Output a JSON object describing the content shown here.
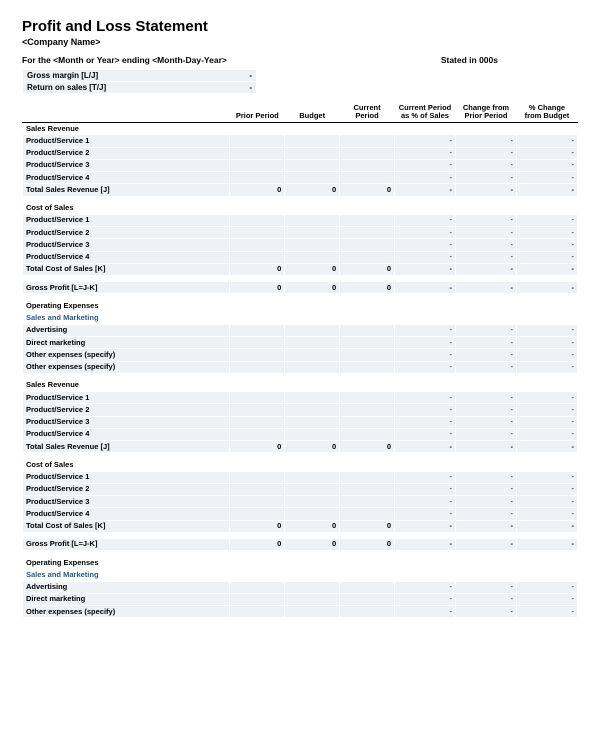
{
  "header": {
    "title": "Profit and Loss Statement",
    "company": "<Company Name>",
    "period_line_prefix": "For the ",
    "period_line_month": "<Month or Year>",
    "period_line_mid": " ending ",
    "period_line_date": "<Month-Day-Year>",
    "stated": "Stated in 000s"
  },
  "metrics": {
    "gross_margin_label": "Gross margin  [L/J]",
    "gross_margin_val": "-",
    "return_on_sales_label": "Return on sales  [T/J]",
    "return_on_sales_val": "-"
  },
  "columns": {
    "c0": "",
    "c1": "Prior Period",
    "c2": "Budget",
    "c3": "Current Period",
    "c4": "Current Period as % of Sales",
    "c5": "Change from Prior Period",
    "c6": "% Change from Budget"
  },
  "sections": [
    {
      "type": "section",
      "label": "Sales Revenue"
    },
    {
      "type": "data",
      "label": "Product/Service 1",
      "indent": true,
      "cells": [
        "",
        "",
        "",
        "-",
        "-",
        "-"
      ]
    },
    {
      "type": "data",
      "label": "Product/Service 2",
      "indent": true,
      "cells": [
        "",
        "",
        "",
        "-",
        "-",
        "-"
      ]
    },
    {
      "type": "data",
      "label": "Product/Service 3",
      "indent": true,
      "cells": [
        "",
        "",
        "",
        "-",
        "-",
        "-"
      ]
    },
    {
      "type": "data",
      "label": "Product/Service 4",
      "indent": true,
      "cells": [
        "",
        "",
        "",
        "-",
        "-",
        "-"
      ]
    },
    {
      "type": "total",
      "label": "Total Sales Revenue  [J]",
      "cells": [
        "0",
        "0",
        "0",
        "-",
        "-",
        "-"
      ]
    },
    {
      "type": "spacer"
    },
    {
      "type": "section",
      "label": "Cost of Sales"
    },
    {
      "type": "data",
      "label": "Product/Service 1",
      "indent": true,
      "cells": [
        "",
        "",
        "",
        "-",
        "-",
        "-"
      ]
    },
    {
      "type": "data",
      "label": "Product/Service 2",
      "indent": true,
      "cells": [
        "",
        "",
        "",
        "-",
        "-",
        "-"
      ]
    },
    {
      "type": "data",
      "label": "Product/Service 3",
      "indent": true,
      "cells": [
        "",
        "",
        "",
        "-",
        "-",
        "-"
      ]
    },
    {
      "type": "data",
      "label": "Product/Service 4",
      "indent": true,
      "cells": [
        "",
        "",
        "",
        "-",
        "-",
        "-"
      ]
    },
    {
      "type": "total",
      "label": "Total Cost of Sales  [K]",
      "cells": [
        "0",
        "0",
        "0",
        "-",
        "-",
        "-"
      ]
    },
    {
      "type": "spacer"
    },
    {
      "type": "total",
      "label": "Gross Profit  [L=J-K]",
      "cells": [
        "0",
        "0",
        "0",
        "-",
        "-",
        "-"
      ]
    },
    {
      "type": "spacer"
    },
    {
      "type": "section",
      "label": "Operating Expenses"
    },
    {
      "type": "subh",
      "label": "Sales and Marketing"
    },
    {
      "type": "data",
      "label": "Advertising",
      "indent": true,
      "cells": [
        "",
        "",
        "",
        "-",
        "-",
        "-"
      ]
    },
    {
      "type": "data",
      "label": "Direct marketing",
      "indent": true,
      "cells": [
        "",
        "",
        "",
        "-",
        "-",
        "-"
      ]
    },
    {
      "type": "data",
      "label": "Other expenses (specify)",
      "indent": true,
      "cells": [
        "",
        "",
        "",
        "-",
        "-",
        "-"
      ]
    },
    {
      "type": "data",
      "label": "Other expenses (specify)",
      "indent": true,
      "cells": [
        "",
        "",
        "",
        "-",
        "-",
        "-"
      ]
    },
    {
      "type": "spacer"
    },
    {
      "type": "section",
      "label": "Sales Revenue"
    },
    {
      "type": "data",
      "label": "Product/Service 1",
      "indent": true,
      "cells": [
        "",
        "",
        "",
        "-",
        "-",
        "-"
      ]
    },
    {
      "type": "data",
      "label": "Product/Service 2",
      "indent": true,
      "cells": [
        "",
        "",
        "",
        "-",
        "-",
        "-"
      ]
    },
    {
      "type": "data",
      "label": "Product/Service 3",
      "indent": true,
      "cells": [
        "",
        "",
        "",
        "-",
        "-",
        "-"
      ]
    },
    {
      "type": "data",
      "label": "Product/Service 4",
      "indent": true,
      "cells": [
        "",
        "",
        "",
        "-",
        "-",
        "-"
      ]
    },
    {
      "type": "total",
      "label": "Total Sales Revenue  [J]",
      "cells": [
        "0",
        "0",
        "0",
        "-",
        "-",
        "-"
      ]
    },
    {
      "type": "spacer"
    },
    {
      "type": "section",
      "label": "Cost of Sales"
    },
    {
      "type": "data",
      "label": "Product/Service 1",
      "indent": true,
      "cells": [
        "",
        "",
        "",
        "-",
        "-",
        "-"
      ]
    },
    {
      "type": "data",
      "label": "Product/Service 2",
      "indent": true,
      "cells": [
        "",
        "",
        "",
        "-",
        "-",
        "-"
      ]
    },
    {
      "type": "data",
      "label": "Product/Service 3",
      "indent": true,
      "cells": [
        "",
        "",
        "",
        "-",
        "-",
        "-"
      ]
    },
    {
      "type": "data",
      "label": "Product/Service 4",
      "indent": true,
      "cells": [
        "",
        "",
        "",
        "-",
        "-",
        "-"
      ]
    },
    {
      "type": "total",
      "label": "Total Cost of Sales  [K]",
      "cells": [
        "0",
        "0",
        "0",
        "-",
        "-",
        "-"
      ]
    },
    {
      "type": "spacer"
    },
    {
      "type": "total",
      "label": "Gross Profit  [L=J-K]",
      "cells": [
        "0",
        "0",
        "0",
        "-",
        "-",
        "-"
      ]
    },
    {
      "type": "spacer"
    },
    {
      "type": "section",
      "label": "Operating Expenses"
    },
    {
      "type": "subh",
      "label": "Sales and Marketing"
    },
    {
      "type": "data",
      "label": "Advertising",
      "indent": true,
      "cells": [
        "",
        "",
        "",
        "-",
        "-",
        "-"
      ]
    },
    {
      "type": "data",
      "label": "Direct marketing",
      "indent": true,
      "cells": [
        "",
        "",
        "",
        "-",
        "-",
        "-"
      ]
    },
    {
      "type": "data",
      "label": "Other expenses (specify)",
      "indent": true,
      "cells": [
        "",
        "",
        "",
        "-",
        "-",
        "-"
      ]
    }
  ],
  "styling": {
    "shade_bg": "#eef2f5",
    "accent_text": "#2a5a8a",
    "border_color": "#ffffff",
    "heavy_border": "#000000",
    "font_family": "Arial",
    "title_fontsize": 15,
    "body_fontsize": 8
  }
}
